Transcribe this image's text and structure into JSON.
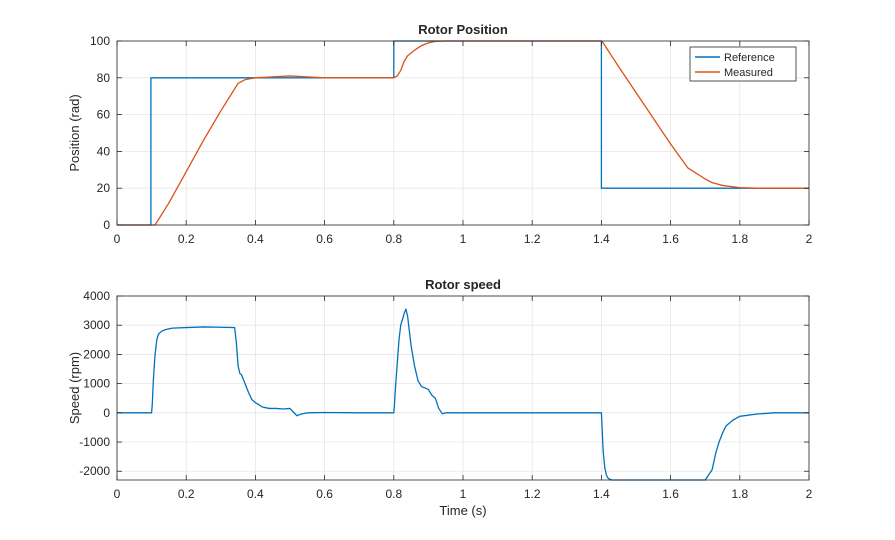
{
  "colors": {
    "reference": "#0072BD",
    "measured": "#D95319",
    "grid": "#e6e6e6",
    "axis": "#262626"
  },
  "chart_data": [
    {
      "type": "line",
      "title": "Rotor Position",
      "xlabel": "",
      "ylabel": "Position (rad)",
      "xlim": [
        0,
        2
      ],
      "ylim": [
        0,
        100
      ],
      "xticks": [
        0,
        0.2,
        0.4,
        0.6,
        0.8,
        1,
        1.2,
        1.4,
        1.6,
        1.8,
        2
      ],
      "yticks": [
        0,
        20,
        40,
        60,
        80,
        100
      ],
      "xtick_labels": [
        "0",
        "0.2",
        "0.4",
        "0.6",
        "0.8",
        "1",
        "1.2",
        "1.4",
        "1.6",
        "1.8",
        "2"
      ],
      "ytick_labels": [
        "0",
        "20",
        "40",
        "60",
        "80",
        "100"
      ],
      "grid": true,
      "legend": "top-right",
      "series": [
        {
          "name": "Reference",
          "color": "#0072BD",
          "x": [
            0,
            0.098,
            0.098,
            0.8,
            0.8,
            1.4,
            1.4,
            2
          ],
          "y": [
            0,
            0,
            80,
            80,
            100,
            100,
            20,
            20
          ]
        },
        {
          "name": "Measured",
          "color": "#D95319",
          "x": [
            0,
            0.1,
            0.11,
            0.15,
            0.2,
            0.25,
            0.3,
            0.33,
            0.35,
            0.37,
            0.4,
            0.45,
            0.5,
            0.55,
            0.6,
            0.7,
            0.8,
            0.81,
            0.82,
            0.83,
            0.84,
            0.86,
            0.88,
            0.9,
            0.92,
            0.95,
            1.0,
            1.2,
            1.4,
            1.405,
            1.45,
            1.5,
            1.55,
            1.6,
            1.65,
            1.7,
            1.72,
            1.75,
            1.78,
            1.8,
            1.85,
            1.9,
            2
          ],
          "y": [
            0,
            0,
            0,
            12,
            29,
            46,
            62,
            71,
            77,
            79,
            80,
            80.5,
            81,
            80.5,
            80,
            80,
            80,
            81,
            84,
            89,
            92,
            95,
            97.5,
            99,
            99.8,
            100,
            100,
            100,
            100,
            99,
            86,
            72,
            58,
            44,
            31,
            25,
            23,
            21.5,
            20.8,
            20.3,
            20,
            20,
            20
          ]
        }
      ]
    },
    {
      "type": "line",
      "title": "Rotor speed",
      "xlabel": "Time (s)",
      "ylabel": "Speed (rpm)",
      "xlim": [
        0,
        2
      ],
      "ylim": [
        -2300,
        4000
      ],
      "xticks": [
        0,
        0.2,
        0.4,
        0.6,
        0.8,
        1,
        1.2,
        1.4,
        1.6,
        1.8,
        2
      ],
      "yticks": [
        -2000,
        -1000,
        0,
        1000,
        2000,
        3000,
        4000
      ],
      "xtick_labels": [
        "0",
        "0.2",
        "0.4",
        "0.6",
        "0.8",
        "1",
        "1.2",
        "1.4",
        "1.6",
        "1.8",
        "2"
      ],
      "ytick_labels": [
        "-2000",
        "-1000",
        "0",
        "1000",
        "2000",
        "3000",
        "4000"
      ],
      "grid": true,
      "series": [
        {
          "color": "#0072BD",
          "x": [
            0,
            0.1,
            0.102,
            0.105,
            0.11,
            0.115,
            0.12,
            0.13,
            0.14,
            0.16,
            0.2,
            0.25,
            0.3,
            0.34,
            0.345,
            0.35,
            0.355,
            0.36,
            0.37,
            0.38,
            0.39,
            0.4,
            0.42,
            0.44,
            0.46,
            0.48,
            0.5,
            0.52,
            0.53,
            0.55,
            0.6,
            0.7,
            0.8,
            0.802,
            0.805,
            0.81,
            0.815,
            0.82,
            0.83,
            0.835,
            0.84,
            0.85,
            0.86,
            0.87,
            0.88,
            0.9,
            0.91,
            0.92,
            0.93,
            0.94,
            0.95,
            1.0,
            1.2,
            1.4,
            1.402,
            1.405,
            1.41,
            1.415,
            1.42,
            1.43,
            1.45,
            1.5,
            1.6,
            1.7,
            1.72,
            1.73,
            1.74,
            1.75,
            1.76,
            1.78,
            1.8,
            1.85,
            1.9,
            2
          ],
          "y": [
            0,
            0,
            300,
            1100,
            2000,
            2500,
            2700,
            2800,
            2850,
            2900,
            2920,
            2940,
            2930,
            2920,
            2400,
            1600,
            1350,
            1300,
            1000,
            700,
            450,
            350,
            200,
            150,
            150,
            130,
            150,
            -100,
            -50,
            0,
            10,
            0,
            0,
            300,
            900,
            1700,
            2500,
            3000,
            3400,
            3550,
            3300,
            2300,
            1600,
            1100,
            900,
            800,
            600,
            500,
            150,
            -30,
            0,
            0,
            0,
            0,
            -500,
            -1300,
            -1900,
            -2150,
            -2250,
            -2300,
            -2300,
            -2300,
            -2300,
            -2300,
            -1950,
            -1400,
            -1000,
            -700,
            -450,
            -250,
            -120,
            -40,
            0,
            0
          ]
        }
      ]
    }
  ]
}
